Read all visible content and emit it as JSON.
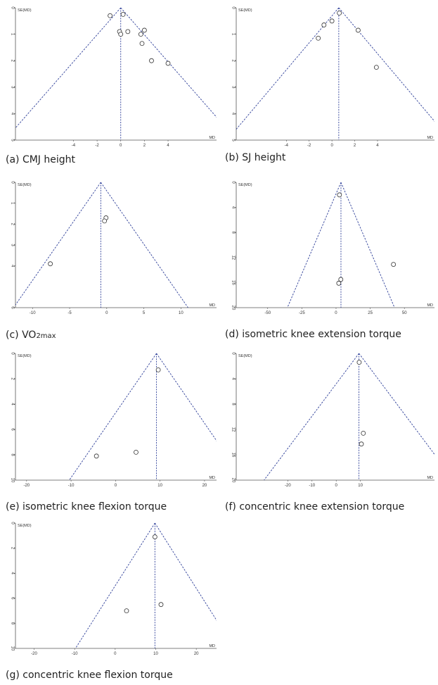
{
  "chart_data": [
    {
      "id": "a",
      "type": "scatter",
      "caption_prefix": "(a) ",
      "caption": "CMJ height",
      "caption_sub": "",
      "xlabel": "MD",
      "ylabel": "SE(MD)",
      "xlim": [
        -8.9,
        8.1
      ],
      "ylim": [
        0,
        5
      ],
      "xticks": [
        -4,
        -2,
        0,
        2,
        4
      ],
      "yticks": [
        0,
        1,
        2,
        3,
        4,
        5
      ],
      "pooled_md": 0,
      "points": [
        {
          "x": -0.9,
          "y": 0.3
        },
        {
          "x": 0.2,
          "y": 0.25
        },
        {
          "x": -0.1,
          "y": 0.9
        },
        {
          "x": 0.0,
          "y": 1.0
        },
        {
          "x": 0.6,
          "y": 0.9
        },
        {
          "x": 1.7,
          "y": 1.0
        },
        {
          "x": 2.0,
          "y": 0.85
        },
        {
          "x": 1.8,
          "y": 1.35
        },
        {
          "x": 2.6,
          "y": 2.0
        },
        {
          "x": 4.0,
          "y": 2.1
        }
      ]
    },
    {
      "id": "b",
      "type": "scatter",
      "caption_prefix": "(b) ",
      "caption": "SJ height",
      "caption_sub": "",
      "xlabel": "MD",
      "ylabel": "SE(MD)",
      "xlim": [
        -8.4,
        9.0
      ],
      "ylim": [
        0,
        5
      ],
      "xticks": [
        -4,
        -2,
        0,
        2,
        4
      ],
      "yticks": [
        0,
        1,
        2,
        3,
        4,
        5
      ],
      "pooled_md": 0.6,
      "points": [
        {
          "x": -1.2,
          "y": 1.15
        },
        {
          "x": -0.7,
          "y": 0.65
        },
        {
          "x": 0.0,
          "y": 0.5
        },
        {
          "x": 0.65,
          "y": 0.2
        },
        {
          "x": 2.3,
          "y": 0.85
        },
        {
          "x": 3.9,
          "y": 2.25
        }
      ]
    },
    {
      "id": "c",
      "type": "scatter",
      "caption_prefix": "(c) ",
      "caption": "VO",
      "caption_sub": "2max",
      "xlabel": "MD",
      "ylabel": "SE(MD)",
      "xlim": [
        -12.3,
        14.8
      ],
      "ylim": [
        0,
        6
      ],
      "xticks": [
        -10,
        -5,
        0,
        5,
        10
      ],
      "yticks": [
        0,
        1,
        2,
        3,
        4,
        6
      ],
      "pooled_md": -0.8,
      "points": [
        {
          "x": -7.6,
          "y": 3.9
        },
        {
          "x": -0.1,
          "y": 1.7
        },
        {
          "x": -0.3,
          "y": 1.85
        }
      ]
    },
    {
      "id": "d",
      "type": "scatter",
      "caption_prefix": "(d) ",
      "caption": "isometric knee extension torque",
      "caption_sub": "",
      "xlabel": "MD",
      "ylabel": "SE(MD)",
      "xlim": [
        -73,
        72
      ],
      "ylim": [
        0,
        20
      ],
      "xticks": [
        -50,
        -25,
        0,
        25,
        50
      ],
      "yticks": [
        0,
        4,
        8,
        12,
        16,
        20
      ],
      "pooled_md": 3.6,
      "points": [
        {
          "x": 2.5,
          "y": 2.0
        },
        {
          "x": 3.5,
          "y": 15.5
        },
        {
          "x": 2.0,
          "y": 16.1
        },
        {
          "x": 42.0,
          "y": 13.1
        }
      ]
    },
    {
      "id": "e",
      "type": "scatter",
      "caption_prefix": "(e) ",
      "caption": "isometric knee flexion torque",
      "caption_sub": "",
      "xlabel": "MD",
      "ylabel": "SE(MD)",
      "xlim": [
        -22.5,
        22.7
      ],
      "ylim": [
        0,
        10
      ],
      "xticks": [
        -20,
        -10,
        0,
        10,
        20
      ],
      "yticks": [
        0,
        2,
        4,
        6,
        8,
        10
      ],
      "pooled_md": 9.2,
      "points": [
        {
          "x": 9.6,
          "y": 1.3
        },
        {
          "x": 4.6,
          "y": 7.8
        },
        {
          "x": -4.3,
          "y": 8.1
        }
      ]
    },
    {
      "id": "f",
      "type": "scatter",
      "caption_prefix": "(f) ",
      "caption": "concentric knee extension torque",
      "caption_sub": "",
      "xlabel": "MD",
      "ylabel": "SE(MD)",
      "xlim": [
        -41.3,
        40.6
      ],
      "ylim": [
        0,
        20
      ],
      "xticks": [
        -20,
        -10,
        0,
        10
      ],
      "yticks": [
        0,
        4,
        8,
        12,
        16,
        20
      ],
      "pooled_md": 9.4,
      "points": [
        {
          "x": 9.5,
          "y": 1.4
        },
        {
          "x": 11.2,
          "y": 12.6
        },
        {
          "x": 10.4,
          "y": 14.3
        }
      ]
    },
    {
      "id": "g",
      "type": "scatter",
      "caption_prefix": "(g) ",
      "caption": "concentric knee flexion torque",
      "caption_sub": "",
      "xlabel": "MD",
      "ylabel": "SE(MD)",
      "xlim": [
        -24.6,
        25.0
      ],
      "ylim": [
        0,
        10
      ],
      "xticks": [
        -20,
        -10,
        0,
        10,
        20
      ],
      "yticks": [
        0,
        2,
        4,
        6,
        8,
        10
      ],
      "pooled_md": 9.8,
      "points": [
        {
          "x": 9.8,
          "y": 1.1
        },
        {
          "x": 11.3,
          "y": 6.5
        },
        {
          "x": 2.8,
          "y": 7.0
        }
      ]
    }
  ]
}
